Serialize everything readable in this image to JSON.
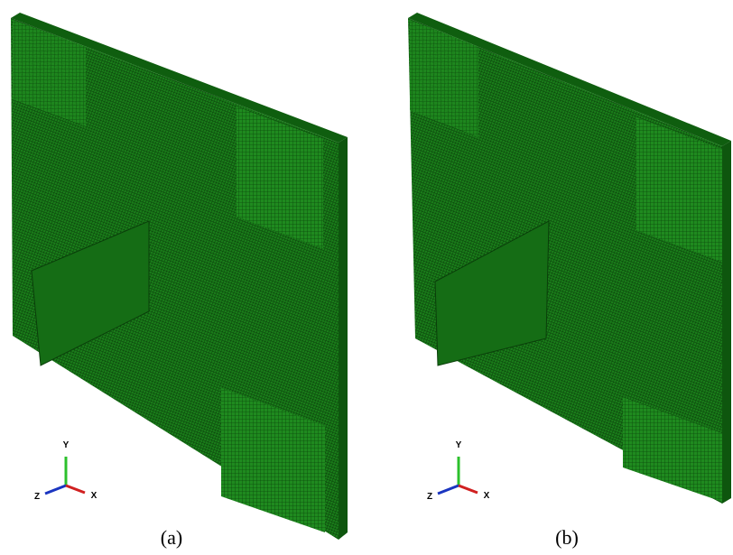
{
  "panels": [
    {
      "caption": "(a)",
      "triad": {
        "y": "Y",
        "z": "Z",
        "x": "X"
      }
    },
    {
      "caption": "(b)",
      "triad": {
        "y": "Y",
        "z": "Z",
        "x": "X"
      }
    }
  ]
}
